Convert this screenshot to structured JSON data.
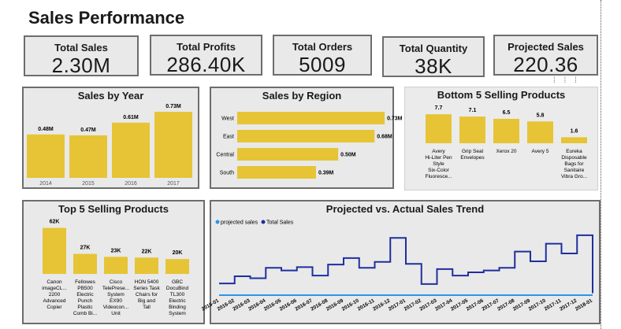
{
  "dashboard": {
    "title": "Sales Performance"
  },
  "kpis": [
    {
      "label": "Total Sales",
      "value": "2.30M"
    },
    {
      "label": "Total Profits",
      "value": "286.40K"
    },
    {
      "label": "Total Orders",
      "value": "5009"
    },
    {
      "label": "Total Quantity",
      "value": "38K"
    },
    {
      "label": "Projected Sales",
      "value": "220.36"
    }
  ],
  "panels": {
    "year": "Sales by Year",
    "region": "Sales by Region",
    "bottom5": "Bottom 5 Selling Products",
    "top5": "Top 5 Selling Products",
    "trend": "Projected vs. Actual Sales Trend"
  },
  "colors": {
    "bar": "#e6c436",
    "actual_line": "#1f2f9e",
    "projected_line": "#2b95e6"
  },
  "chart_data": [
    {
      "type": "bar",
      "title": "Sales by Year",
      "categories": [
        "2014",
        "2015",
        "2016",
        "2017"
      ],
      "values": [
        0.48,
        0.47,
        0.61,
        0.73
      ],
      "data_labels": [
        "0.48M",
        "0.47M",
        "0.61M",
        "0.73M"
      ],
      "ylim": [
        0,
        0.8
      ]
    },
    {
      "type": "bar",
      "orientation": "horizontal",
      "title": "Sales by Region",
      "categories": [
        "West",
        "East",
        "Central",
        "South"
      ],
      "values": [
        0.73,
        0.68,
        0.5,
        0.39
      ],
      "data_labels": [
        "0.73M",
        "0.68M",
        "0.50M",
        "0.39M"
      ],
      "xlim": [
        0,
        0.8
      ]
    },
    {
      "type": "bar",
      "title": "Bottom 5 Selling Products",
      "categories": [
        [
          "Avery",
          "Hi-Liter Pen",
          "Style",
          "Six-Color",
          "Fluoresce..."
        ],
        [
          "Grip Seal",
          "Envelopes"
        ],
        [
          "Xerox 20"
        ],
        [
          "Avery 5"
        ],
        [
          "Eureka",
          "Disposable",
          "Bags for",
          "Sanitaire",
          "Vibra Gro..."
        ]
      ],
      "values": [
        7.7,
        7.1,
        6.5,
        5.8,
        1.6
      ],
      "data_labels": [
        "7.7",
        "7.1",
        "6.5",
        "5.8",
        "1.6"
      ],
      "ylim": [
        0,
        9
      ]
    },
    {
      "type": "bar",
      "title": "Top 5 Selling Products",
      "categories": [
        [
          "Canon",
          "imageCL...",
          "2200",
          "Advanced",
          "Copier"
        ],
        [
          "Fellowes",
          "PB500",
          "Electric",
          "Punch",
          "Plastic",
          "Comb Bi..."
        ],
        [
          "Cisco",
          "TelePrese...",
          "System",
          "EX90",
          "Videocon...",
          "Unit"
        ],
        [
          "HON 5400",
          "Series Task",
          "Chairs for",
          "Big and",
          "Tall"
        ],
        [
          "GBC",
          "DocuBind",
          "TL300",
          "Electric",
          "Binding",
          "System"
        ]
      ],
      "values": [
        62,
        27,
        23,
        22,
        20
      ],
      "data_labels": [
        "62K",
        "27K",
        "23K",
        "22K",
        "20K"
      ],
      "ylim": [
        0,
        70
      ]
    },
    {
      "type": "line",
      "title": "Projected vs. Actual Sales Trend",
      "legend_position": "top-left",
      "x": [
        "2016-01",
        "2016-02",
        "2016-03",
        "2016-04",
        "2016-05",
        "2016-06",
        "2016-07",
        "2016-08",
        "2016-09",
        "2016-10",
        "2016-11",
        "2016-12",
        "2017-01",
        "2017-02",
        "2017-03",
        "2017-04",
        "2017-05",
        "2017-06",
        "2017-07",
        "2017-08",
        "2017-09",
        "2017-10",
        "2017-11",
        "2017-12",
        "2018-01"
      ],
      "series": [
        {
          "name": "projected sales",
          "values": [
            0,
            0,
            0,
            0,
            0,
            0,
            0,
            0,
            0,
            0,
            0,
            0,
            0,
            0,
            0,
            0,
            0,
            0,
            0,
            0,
            0,
            0,
            0,
            0,
            0
          ]
        },
        {
          "name": "Total Sales",
          "values": [
            18,
            29,
            26,
            42,
            38,
            43,
            30,
            47,
            57,
            42,
            51,
            88,
            48,
            17,
            40,
            30,
            35,
            38,
            42,
            67,
            52,
            79,
            64,
            92,
            3
          ]
        }
      ],
      "ylim": [
        0,
        110
      ]
    }
  ]
}
